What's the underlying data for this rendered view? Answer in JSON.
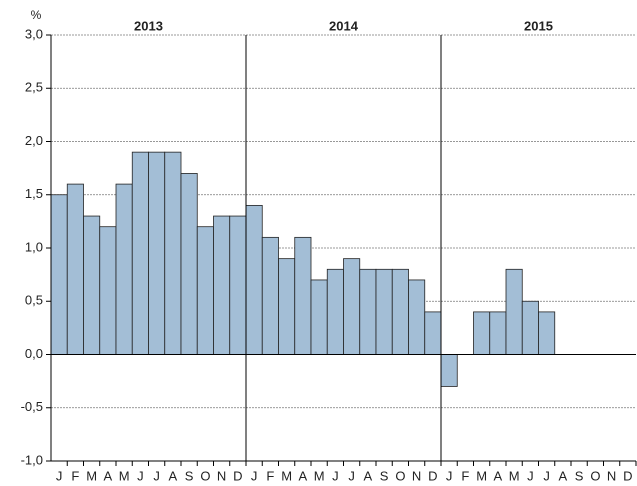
{
  "chart_data": {
    "type": "bar",
    "y_unit_label": "%",
    "years": [
      "2013",
      "2014",
      "2015"
    ],
    "categories": [
      "J",
      "F",
      "M",
      "A",
      "M",
      "J",
      "J",
      "A",
      "S",
      "O",
      "N",
      "D",
      "J",
      "F",
      "M",
      "A",
      "M",
      "J",
      "J",
      "A",
      "S",
      "O",
      "N",
      "D",
      "J",
      "F",
      "M",
      "A",
      "M",
      "J",
      "J",
      "A",
      "S",
      "O",
      "N",
      "D"
    ],
    "values": [
      1.5,
      1.6,
      1.3,
      1.2,
      1.6,
      1.9,
      1.9,
      1.9,
      1.7,
      1.2,
      1.3,
      1.3,
      1.4,
      1.1,
      0.9,
      1.1,
      0.7,
      0.8,
      0.9,
      0.8,
      0.8,
      0.8,
      0.7,
      0.4,
      -0.3,
      0.0,
      0.4,
      0.4,
      0.8,
      0.5,
      0.4,
      null,
      null,
      null,
      null,
      null
    ],
    "color": "#a3bed6",
    "ylim": [
      -1.0,
      3.0
    ],
    "yticks": [
      {
        "value": -1.0,
        "label": "-1,0"
      },
      {
        "value": -0.5,
        "label": "-0,5"
      },
      {
        "value": 0.0,
        "label": "0,0"
      },
      {
        "value": 0.5,
        "label": "0,5"
      },
      {
        "value": 1.0,
        "label": "1,0"
      },
      {
        "value": 1.5,
        "label": "1,5"
      },
      {
        "value": 2.0,
        "label": "2,0"
      },
      {
        "value": 2.5,
        "label": "2,5"
      },
      {
        "value": 3.0,
        "label": "3,0"
      }
    ],
    "grid": true
  }
}
